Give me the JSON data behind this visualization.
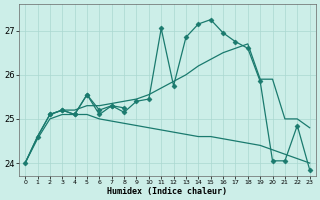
{
  "xlabel": "Humidex (Indice chaleur)",
  "background_color": "#cceee8",
  "grid_color": "#aad8d0",
  "line_color": "#1a7a6e",
  "xlim": [
    -0.5,
    23.5
  ],
  "ylim": [
    23.7,
    27.6
  ],
  "yticks": [
    24,
    25,
    26,
    27
  ],
  "xticks": [
    0,
    1,
    2,
    3,
    4,
    5,
    6,
    7,
    8,
    9,
    10,
    11,
    12,
    13,
    14,
    15,
    16,
    17,
    18,
    19,
    20,
    21,
    22,
    23
  ],
  "series": [
    {
      "x": [
        0,
        1,
        2,
        3,
        4,
        5,
        6,
        7,
        8,
        9,
        10,
        11,
        12,
        13,
        14,
        15,
        16,
        17,
        18,
        19,
        20,
        21,
        22,
        23
      ],
      "y": [
        24.0,
        24.6,
        25.1,
        25.2,
        25.1,
        25.55,
        25.1,
        25.3,
        25.15,
        25.4,
        25.45,
        27.05,
        25.75,
        26.85,
        27.15,
        27.25,
        26.95,
        26.75,
        26.6,
        25.85,
        24.05,
        24.05,
        24.85,
        23.85
      ],
      "marker": "D",
      "markersize": 2.5,
      "linewidth": 0.9
    },
    {
      "x": [
        0,
        1,
        2,
        3,
        4,
        5,
        6,
        7,
        8,
        9,
        10,
        11,
        12,
        13,
        14,
        15,
        16,
        17,
        18,
        19,
        20,
        21,
        22,
        23
      ],
      "y": [
        24.0,
        24.6,
        25.1,
        25.2,
        25.2,
        25.3,
        25.3,
        25.35,
        25.4,
        25.45,
        25.55,
        25.7,
        25.85,
        26.0,
        26.2,
        26.35,
        26.5,
        26.6,
        26.7,
        25.9,
        25.9,
        25.0,
        25.0,
        24.8
      ],
      "marker": null,
      "linewidth": 0.9
    },
    {
      "x": [
        0,
        1,
        2,
        3,
        4,
        5,
        6,
        7,
        8,
        9,
        10,
        11,
        12,
        13,
        14,
        15,
        16,
        17,
        18,
        19,
        20,
        21,
        22,
        23
      ],
      "y": [
        24.0,
        24.55,
        25.0,
        25.1,
        25.1,
        25.1,
        25.0,
        24.95,
        24.9,
        24.85,
        24.8,
        24.75,
        24.7,
        24.65,
        24.6,
        24.6,
        24.55,
        24.5,
        24.45,
        24.4,
        24.3,
        24.2,
        24.1,
        24.0
      ],
      "marker": null,
      "linewidth": 0.9
    },
    {
      "x": [
        2,
        3,
        4,
        5,
        6,
        7,
        8
      ],
      "y": [
        25.1,
        25.2,
        25.1,
        25.55,
        25.2,
        25.3,
        25.25
      ],
      "marker": "D",
      "markersize": 2.5,
      "linewidth": 0.9
    }
  ]
}
